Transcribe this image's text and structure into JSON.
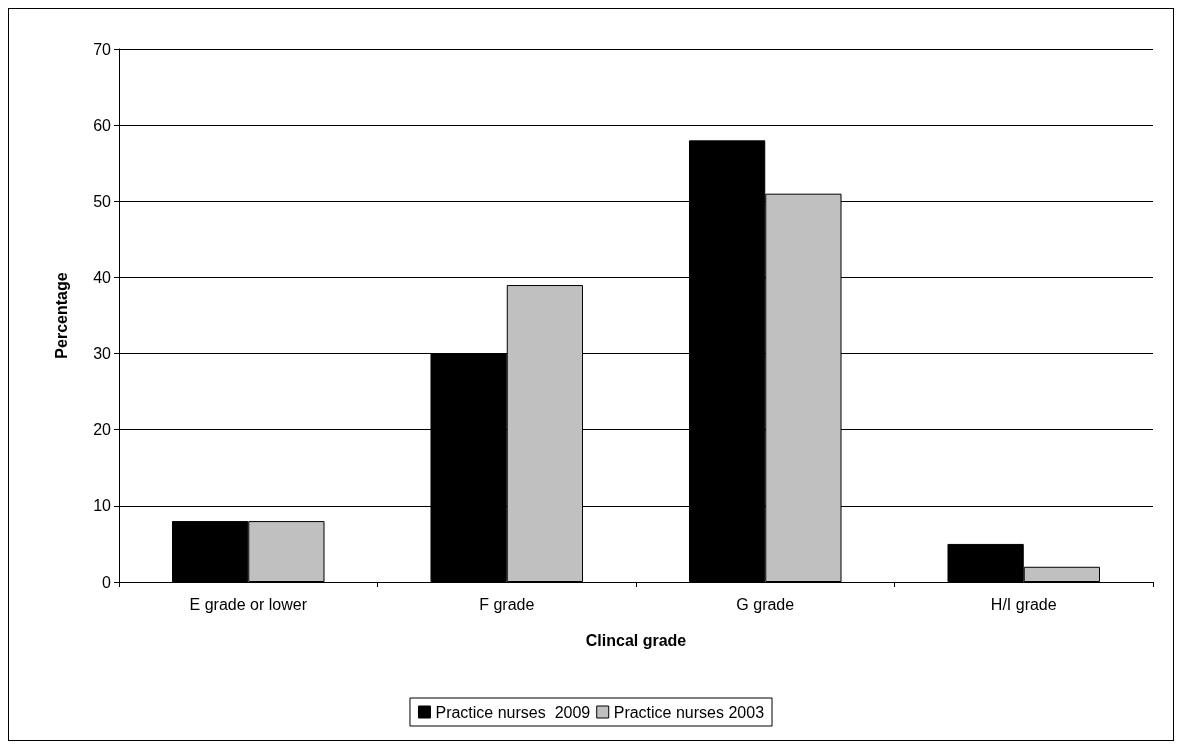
{
  "chart_data": {
    "type": "bar",
    "xlabel": "Clincal grade",
    "ylabel": "Percentage",
    "categories": [
      "E grade or lower",
      "F grade",
      "G grade",
      "H/I grade"
    ],
    "series": [
      {
        "name": "Practice nurses  2009",
        "color": "#000000",
        "values": [
          8,
          30,
          58,
          5
        ]
      },
      {
        "name": "Practice nurses 2003",
        "color": "#c0c0c0",
        "values": [
          8,
          39,
          51,
          2
        ]
      }
    ],
    "ylim": [
      0,
      70
    ],
    "yticks": [
      0,
      10,
      20,
      30,
      40,
      50,
      60,
      70
    ],
    "grid": "y",
    "legend": "bottom"
  }
}
